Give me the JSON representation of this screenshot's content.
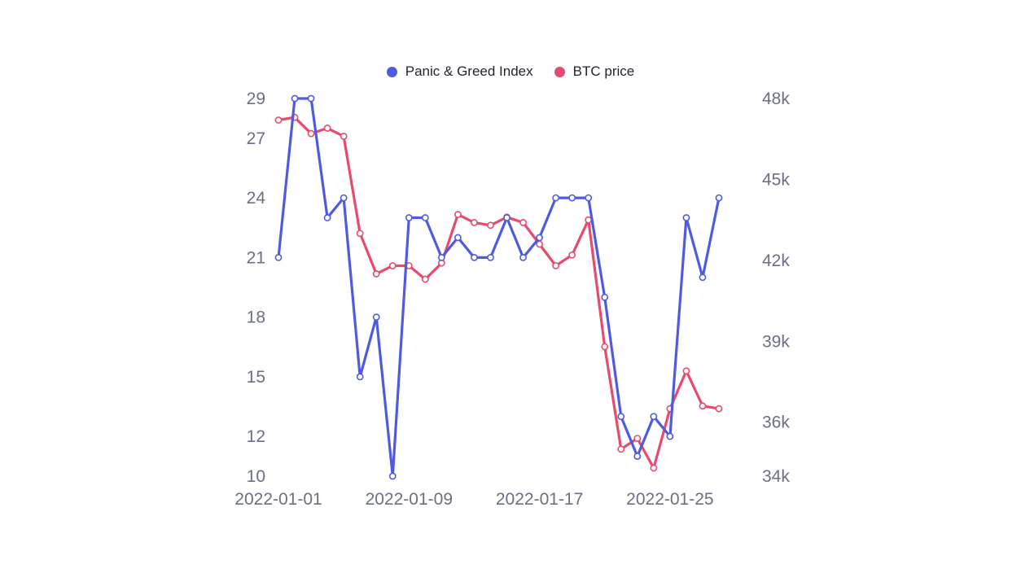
{
  "chart_data": {
    "type": "line",
    "legend_position": "top-center",
    "grid": false,
    "colors": {
      "panic_greed": "#4f5bdf",
      "btc": "#e84a6e",
      "tick_text": "#6b6f85"
    },
    "x": [
      "2022-01-01",
      "2022-01-02",
      "2022-01-03",
      "2022-01-04",
      "2022-01-05",
      "2022-01-06",
      "2022-01-07",
      "2022-01-08",
      "2022-01-09",
      "2022-01-10",
      "2022-01-11",
      "2022-01-12",
      "2022-01-13",
      "2022-01-14",
      "2022-01-15",
      "2022-01-16",
      "2022-01-17",
      "2022-01-18",
      "2022-01-19",
      "2022-01-20",
      "2022-01-21",
      "2022-01-22",
      "2022-01-23",
      "2022-01-24",
      "2022-01-25",
      "2022-01-26",
      "2022-01-27",
      "2022-01-28"
    ],
    "x_tick_labels": [
      "2022-01-01",
      "2022-01-09",
      "2022-01-17",
      "2022-01-25"
    ],
    "y_left": {
      "ticks": [
        "10",
        "12",
        "15",
        "18",
        "21",
        "24",
        "27",
        "29"
      ],
      "range": [
        10,
        29
      ]
    },
    "y_right": {
      "ticks": [
        "34k",
        "36k",
        "39k",
        "42k",
        "45k",
        "48k"
      ],
      "range": [
        34000,
        48000
      ]
    },
    "series": [
      {
        "name": "Panic & Greed Index",
        "axis": "left",
        "color": "#4f5bdf",
        "values": [
          21,
          29,
          29,
          23,
          24,
          15,
          18,
          10,
          23,
          23,
          21,
          22,
          21,
          21,
          23,
          21,
          22,
          24,
          24,
          24,
          19,
          13,
          11,
          13,
          12,
          23,
          20,
          24
        ]
      },
      {
        "name": "BTC price",
        "axis": "right",
        "color": "#e84a6e",
        "values": [
          47200,
          47300,
          46700,
          46900,
          46600,
          43000,
          41500,
          41800,
          41800,
          41300,
          41900,
          43700,
          43400,
          43300,
          43600,
          43400,
          42600,
          41800,
          42200,
          43500,
          38800,
          35000,
          35400,
          34300,
          36500,
          37900,
          36600,
          36500
        ]
      }
    ]
  }
}
